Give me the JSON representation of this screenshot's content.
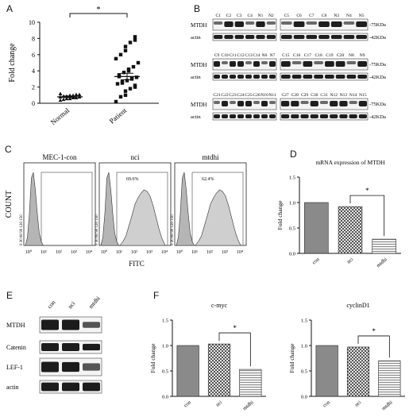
{
  "panels": {
    "A": {
      "label": "A",
      "ylabel": "Fold change",
      "yticks": [
        "0",
        "2",
        "4",
        "6",
        "8",
        "10"
      ],
      "groups": [
        "Normal",
        "Patient"
      ],
      "significance": "*",
      "chart_data": {
        "type": "scatter",
        "categories": [
          "Normal",
          "Patient"
        ],
        "ylim": [
          0,
          10
        ],
        "series": [
          {
            "values": [
              0.4,
              0.5,
              0.6,
              0.6,
              0.7,
              0.7,
              0.8,
              0.8,
              0.9,
              0.9,
              1.0,
              1.0,
              1.1,
              1.1,
              1.2
            ]
          },
          {
            "values": [
              0.2,
              0.8,
              1.0,
              1.5,
              1.8,
              2.0,
              2.2,
              2.4,
              2.5,
              2.7,
              2.8,
              3.0,
              3.1,
              3.2,
              3.3,
              3.5,
              3.8,
              4.0,
              4.2,
              4.5,
              5.0,
              5.5,
              6.0,
              6.5,
              7.0,
              7.5,
              7.8,
              8.2
            ]
          }
        ],
        "means": [
          0.8,
          3.3
        ],
        "sem": [
          0.1,
          0.4
        ]
      }
    },
    "B": {
      "label": "B",
      "rows": [
        {
          "top": [
            "C1",
            "C2",
            "C3",
            "C4",
            "N1",
            "N2"
          ],
          "top2": [
            "C5",
            "C6",
            "C7",
            "C8",
            "N3",
            "N4",
            "N5"
          ]
        },
        {
          "top": [
            "C9",
            "C10",
            "C11",
            "C12",
            "C13",
            "C14",
            "N6",
            "N7"
          ],
          "top2": [
            "C15",
            "C16",
            "C17",
            "C18",
            "C19",
            "C20",
            "N8",
            "N9"
          ]
        },
        {
          "top": [
            "C21",
            "C22",
            "C23",
            "C24",
            "C25",
            "C26",
            "N10",
            "N11"
          ],
          "top2": [
            "C27",
            "C28",
            "C29",
            "C30",
            "C31",
            "N12",
            "N13",
            "N14",
            "N15"
          ]
        }
      ],
      "protein": "MTDH",
      "control": "actin",
      "mw_protein": "-75KDa",
      "mw_control": "-42KDa"
    },
    "C": {
      "label": "C",
      "ylabel": "COUNT",
      "xlabel": "FITC",
      "subplots": [
        {
          "title": "MEC-1-con",
          "pct": ""
        },
        {
          "title": "nci",
          "pct": "69.6%"
        },
        {
          "title": "mtdhi",
          "pct": "62.4%"
        }
      ],
      "yticklabels": "0 30 60 90 120 150",
      "xticks": [
        "10⁰",
        "10¹",
        "10²",
        "10³",
        "10⁴"
      ]
    },
    "D": {
      "label": "D",
      "title": "mRNA expression of MTDH",
      "ylabel": "Fold change",
      "yticks": [
        "0.0",
        "0.5",
        "1.0",
        "1.5"
      ],
      "significance": "*",
      "chart_data": {
        "type": "bar",
        "categories": [
          "con",
          "nci",
          "mtdhi"
        ],
        "values": [
          1.0,
          0.92,
          0.28
        ],
        "ylim": [
          0,
          1.5
        ],
        "title": "mRNA expression of MTDH",
        "ylabel": "Fold change"
      }
    },
    "E": {
      "label": "E",
      "lanes": [
        "con",
        "nci",
        "mtdhi"
      ],
      "proteins": [
        "MTDH",
        "Catenin",
        "LEF-1",
        "actin"
      ]
    },
    "F": {
      "label": "F",
      "charts": [
        {
          "title": "c-myc",
          "ylabel": "Fold change",
          "yticks": [
            "0.0",
            "0.5",
            "1.0",
            "1.5"
          ],
          "significance": "*",
          "chart_data": {
            "type": "bar",
            "categories": [
              "con",
              "nci",
              "mtdhi"
            ],
            "values": [
              1.0,
              1.03,
              0.53
            ],
            "ylim": [
              0,
              1.5
            ],
            "title": "c-myc",
            "ylabel": "Fold change"
          }
        },
        {
          "title": "cyclinD1",
          "ylabel": "Fold change",
          "yticks": [
            "0.0",
            "0.5",
            "1.0",
            "1.5"
          ],
          "significance": "*",
          "chart_data": {
            "type": "bar",
            "categories": [
              "con",
              "nci",
              "mtdhi"
            ],
            "values": [
              1.0,
              0.97,
              0.7
            ],
            "ylim": [
              0,
              1.5
            ],
            "title": "cyclinD1",
            "ylabel": "Fold change"
          }
        }
      ]
    }
  }
}
